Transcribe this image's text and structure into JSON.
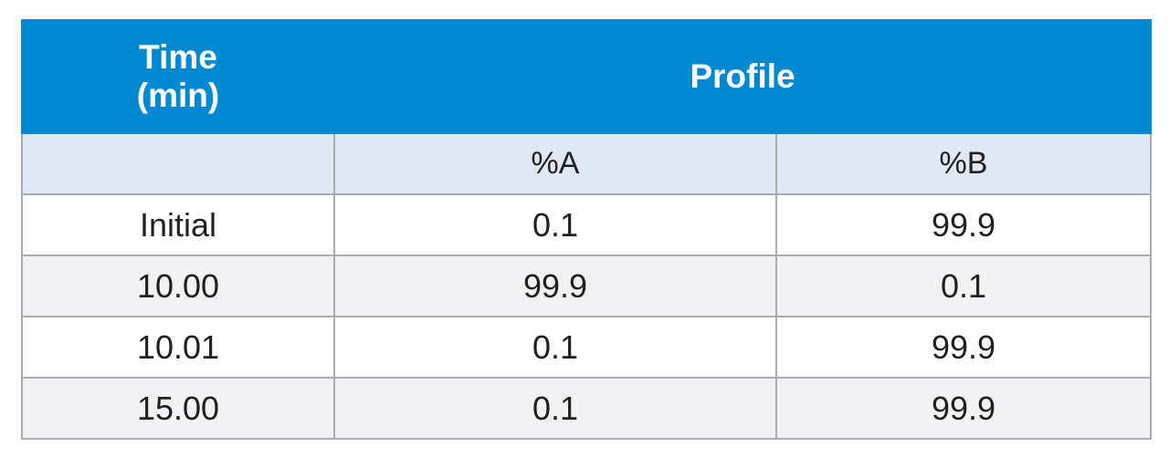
{
  "table": {
    "header": {
      "time_line1": "Time",
      "time_line2": "(min)",
      "profile": "Profile"
    },
    "subheader": {
      "blank": "",
      "col_a": "%A",
      "col_b": "%B"
    },
    "rows": [
      {
        "time": "Initial",
        "a": "0.1",
        "b": "99.9"
      },
      {
        "time": "10.00",
        "a": "99.9",
        "b": "0.1"
      },
      {
        "time": "10.01",
        "a": "0.1",
        "b": "99.9"
      },
      {
        "time": "15.00",
        "a": "0.1",
        "b": "99.9"
      }
    ],
    "colors": {
      "header_bg": "#0088d1",
      "subheader_bg": "#dfe9f6",
      "stripe_bg": "#f2f2f4",
      "border": "#a9acb0"
    }
  }
}
